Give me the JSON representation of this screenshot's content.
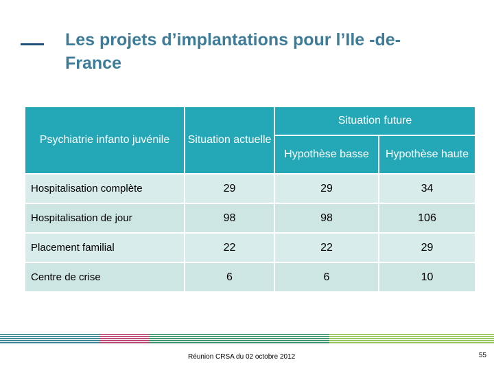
{
  "slide": {
    "title": "Les projets d’implantations pour l’Ile -de-France"
  },
  "table": {
    "corner_header": "Psychiatrie infanto juvénile",
    "current_header": "Situation actuelle",
    "future_header": "Situation future",
    "low_header": "Hypothèse basse",
    "high_header": "Hypothèse haute",
    "rows": [
      {
        "label": "Hospitalisation complète",
        "current": "29",
        "low": "29",
        "high": "34"
      },
      {
        "label": "Hospitalisation de jour",
        "current": "98",
        "low": "98",
        "high": "106"
      },
      {
        "label": "Placement familial",
        "current": "22",
        "low": "22",
        "high": "29"
      },
      {
        "label": "Centre de crise",
        "current": "6",
        "low": "6",
        "high": "10"
      }
    ]
  },
  "footer": {
    "text": "Réunion CRSA du 02 octobre 2012",
    "page_number": "55"
  },
  "colors": {
    "title": "#3d7c98",
    "header_bg": "#24a8b8",
    "row_bg": "#d8ecec",
    "accent_bar": "#1f4e79"
  }
}
